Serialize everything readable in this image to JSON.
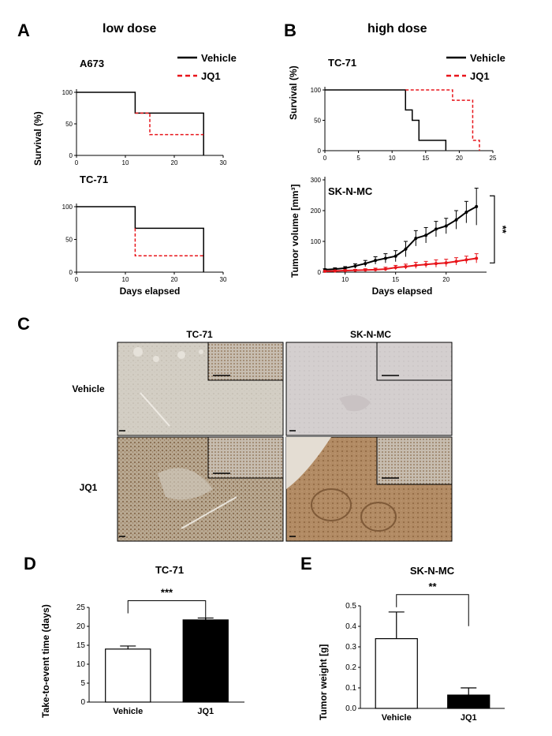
{
  "panels": {
    "A": {
      "letter": "A",
      "title": "low dose"
    },
    "B": {
      "letter": "B",
      "title": "high dose"
    },
    "C": {
      "letter": "C"
    },
    "D": {
      "letter": "D"
    },
    "E": {
      "letter": "E"
    }
  },
  "histology": {
    "col_labels": [
      "TC-71",
      "SK-N-MC"
    ],
    "row_labels": [
      "Vehicle",
      "JQ1"
    ]
  },
  "chart_data": [
    {
      "id": "a-a673",
      "type": "line",
      "step": true,
      "title": "A673",
      "ylabel": "Survival (%)",
      "xlabel": "",
      "xlim": [
        0,
        30
      ],
      "ylim": [
        0,
        100
      ],
      "xticks": [
        0,
        10,
        20,
        30
      ],
      "yticks": [
        0,
        50,
        100
      ],
      "legend": "top-right",
      "series": [
        {
          "name": "Vehicle",
          "color": "#000000",
          "dash": false,
          "x": [
            0,
            12,
            12,
            26,
            26
          ],
          "y": [
            100,
            100,
            67,
            67,
            0
          ]
        },
        {
          "name": "JQ1",
          "color": "#e8151b",
          "dash": true,
          "x": [
            12,
            15,
            15,
            26
          ],
          "y": [
            67,
            67,
            33,
            33
          ]
        }
      ]
    },
    {
      "id": "a-tc71",
      "type": "line",
      "step": true,
      "title": "TC-71",
      "ylabel": "",
      "xlabel": "Days elapsed",
      "xlim": [
        0,
        30
      ],
      "ylim": [
        0,
        100
      ],
      "xticks": [
        0,
        10,
        20,
        30
      ],
      "yticks": [
        0,
        50,
        100
      ],
      "series": [
        {
          "name": "Vehicle",
          "color": "#000000",
          "dash": false,
          "x": [
            0,
            12,
            12,
            26,
            26
          ],
          "y": [
            100,
            100,
            67,
            67,
            0
          ]
        },
        {
          "name": "JQ1",
          "color": "#e8151b",
          "dash": true,
          "x": [
            12,
            12,
            26
          ],
          "y": [
            67,
            25,
            25
          ]
        }
      ]
    },
    {
      "id": "b-tc71",
      "type": "line",
      "step": true,
      "title": "TC-71",
      "ylabel": "Survival (%)",
      "xlabel": "",
      "xlim": [
        0,
        25
      ],
      "ylim": [
        0,
        100
      ],
      "xticks": [
        0,
        5,
        10,
        15,
        20,
        25
      ],
      "yticks": [
        0,
        50,
        100
      ],
      "legend": "top-right",
      "series": [
        {
          "name": "Vehicle",
          "color": "#000000",
          "dash": false,
          "x": [
            0,
            12,
            12,
            13,
            13,
            14,
            14,
            18,
            18
          ],
          "y": [
            100,
            100,
            67,
            67,
            50,
            50,
            17,
            17,
            0
          ]
        },
        {
          "name": "JQ1",
          "color": "#e8151b",
          "dash": true,
          "x": [
            12,
            19,
            19,
            22,
            22,
            23,
            23
          ],
          "y": [
            100,
            100,
            83,
            83,
            17,
            17,
            0
          ]
        }
      ]
    },
    {
      "id": "b-sknmc",
      "type": "line",
      "title": "SK-N-MC",
      "ylabel": "Tumor volume [mm³]",
      "xlabel": "Days elapsed",
      "xlim": [
        8,
        24
      ],
      "ylim": [
        0,
        300
      ],
      "xticks": [
        10,
        15,
        20
      ],
      "yticks": [
        0,
        100,
        200,
        300
      ],
      "annotation": "**",
      "series": [
        {
          "name": "Vehicle",
          "color": "#000000",
          "x": [
            8,
            9,
            10,
            11,
            12,
            13,
            14,
            15,
            16,
            17,
            18,
            19,
            20,
            21,
            22,
            23
          ],
          "y": [
            8,
            10,
            13,
            20,
            28,
            38,
            45,
            52,
            75,
            110,
            120,
            140,
            150,
            170,
            195,
            213
          ],
          "err": [
            3,
            4,
            5,
            7,
            10,
            12,
            15,
            18,
            25,
            25,
            25,
            25,
            25,
            30,
            35,
            60
          ]
        },
        {
          "name": "JQ1",
          "color": "#e8151b",
          "x": [
            8,
            9,
            10,
            11,
            12,
            13,
            14,
            15,
            16,
            17,
            18,
            19,
            20,
            21,
            22,
            23
          ],
          "y": [
            3,
            4,
            5,
            6,
            7,
            8,
            10,
            15,
            18,
            22,
            25,
            28,
            30,
            35,
            40,
            45
          ],
          "err": [
            2,
            2,
            3,
            3,
            4,
            5,
            6,
            7,
            8,
            10,
            10,
            12,
            12,
            12,
            12,
            15
          ]
        }
      ]
    },
    {
      "id": "d",
      "type": "bar",
      "title": "TC-71",
      "ylabel": "Take-to-event time (days)",
      "xlabel": "",
      "categories": [
        "Vehicle",
        "JQ1"
      ],
      "values": [
        14,
        21.7
      ],
      "errors": [
        0.8,
        0.5
      ],
      "fills": [
        "#ffffff",
        "#000000"
      ],
      "ylim": [
        0,
        25
      ],
      "yticks": [
        0,
        5,
        10,
        15,
        20,
        25
      ],
      "annotation": "***"
    },
    {
      "id": "e",
      "type": "bar",
      "title": "SK-N-MC",
      "ylabel": "Tumor weight [g]",
      "xlabel": "",
      "categories": [
        "Vehicle",
        "JQ1"
      ],
      "values": [
        0.34,
        0.065
      ],
      "errors": [
        0.13,
        0.035
      ],
      "fills": [
        "#ffffff",
        "#000000"
      ],
      "ylim": [
        0,
        0.5
      ],
      "yticks": [
        0.0,
        0.1,
        0.2,
        0.3,
        0.4,
        0.5
      ],
      "annotation": "**"
    }
  ]
}
